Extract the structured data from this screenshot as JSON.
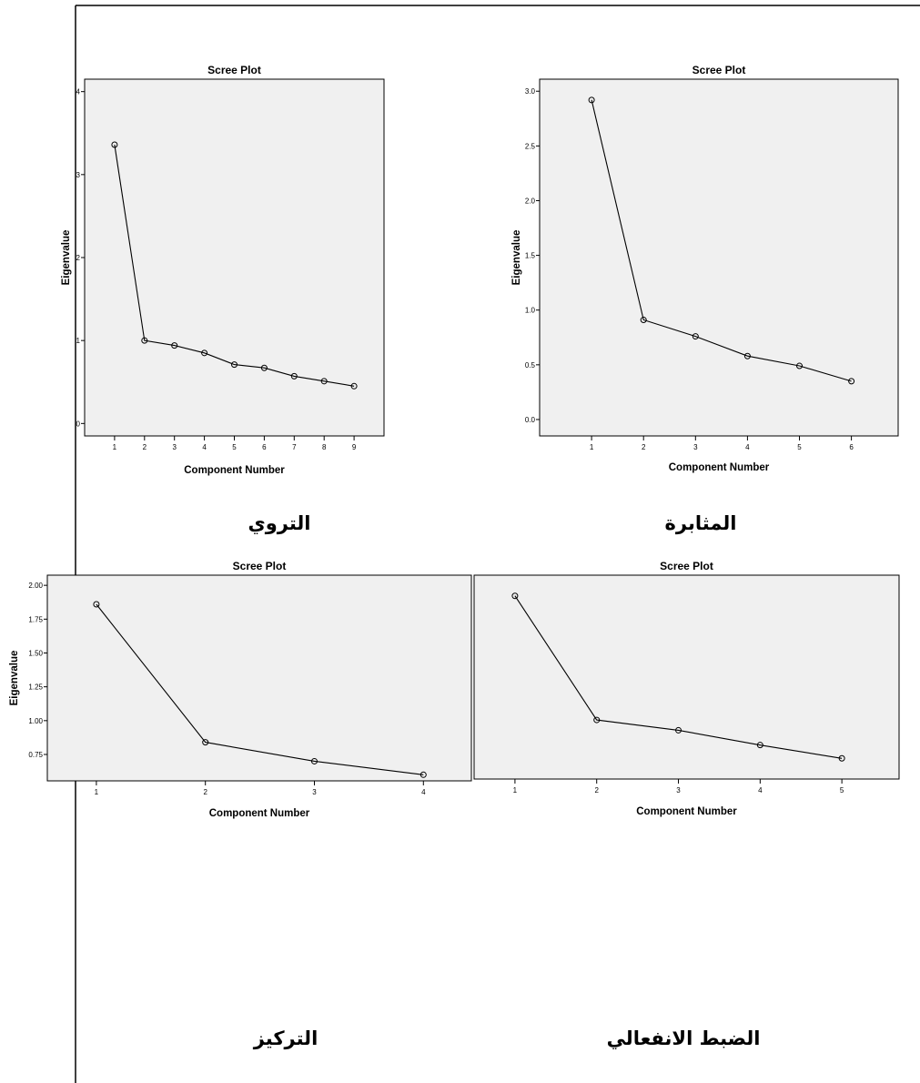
{
  "colors": {
    "plot_background": "#f0f0f0",
    "line": "#000000",
    "marker": "#000000",
    "page_background": "#ffffff"
  },
  "chart_data": [
    {
      "type": "line",
      "title": "Scree Plot",
      "xlabel": "Component Number",
      "ylabel": "Eigenvalue",
      "x": [
        1,
        2,
        3,
        4,
        5,
        6,
        7,
        8,
        9
      ],
      "y": [
        3.36,
        1.0,
        0.94,
        0.85,
        0.71,
        0.67,
        0.57,
        0.51,
        0.45
      ],
      "x_ticks": [
        "1",
        "2",
        "3",
        "4",
        "5",
        "6",
        "7",
        "8",
        "9"
      ],
      "y_ticks": [
        "0",
        "1",
        "2",
        "3",
        "4"
      ],
      "xlim": [
        0,
        10
      ],
      "ylim": [
        -0.15,
        4.15
      ],
      "caption": "التروي",
      "marker": "hollow-circle",
      "grid": false
    },
    {
      "type": "line",
      "title": "Scree Plot",
      "xlabel": "Component Number",
      "ylabel": "Eigenvalue",
      "x": [
        1,
        2,
        3,
        4,
        5,
        6
      ],
      "y": [
        2.92,
        0.91,
        0.76,
        0.58,
        0.49,
        0.35
      ],
      "x_ticks": [
        "1",
        "2",
        "3",
        "4",
        "5",
        "6"
      ],
      "y_ticks": [
        "0.0",
        "0.5",
        "1.0",
        "1.5",
        "2.0",
        "2.5",
        "3.0"
      ],
      "xlim": [
        0,
        6.9
      ],
      "ylim": [
        -0.15,
        3.11
      ],
      "caption": "المثابرة",
      "marker": "hollow-circle",
      "grid": false
    },
    {
      "type": "line",
      "title": "Scree Plot",
      "xlabel": "Component Number",
      "ylabel": "Eigenvalue",
      "x": [
        1,
        2,
        3,
        4
      ],
      "y": [
        1.86,
        0.84,
        0.7,
        0.6
      ],
      "x_ticks": [
        "1",
        "2",
        "3",
        "4"
      ],
      "y_ticks": [
        "0.75",
        "1.00",
        "1.25",
        "1.50",
        "1.75",
        "2.00"
      ],
      "xlim": [
        0.55,
        4.44
      ],
      "ylim": [
        0.555,
        2.075
      ],
      "caption": "التركيز",
      "marker": "hollow-circle",
      "grid": false
    },
    {
      "type": "line",
      "title": "Scree Plot",
      "xlabel": "Component Number",
      "ylabel": "",
      "x": [
        1,
        2,
        3,
        4,
        5
      ],
      "y": [
        1.94,
        1.1,
        1.03,
        0.93,
        0.84
      ],
      "x_ticks": [
        "1",
        "2",
        "3",
        "4",
        "5"
      ],
      "y_ticks": [],
      "xlim": [
        0.5,
        5.7
      ],
      "ylim": [
        0.7,
        2.08
      ],
      "caption": "الضبط الانفعالي",
      "marker": "hollow-circle",
      "grid": false
    }
  ]
}
